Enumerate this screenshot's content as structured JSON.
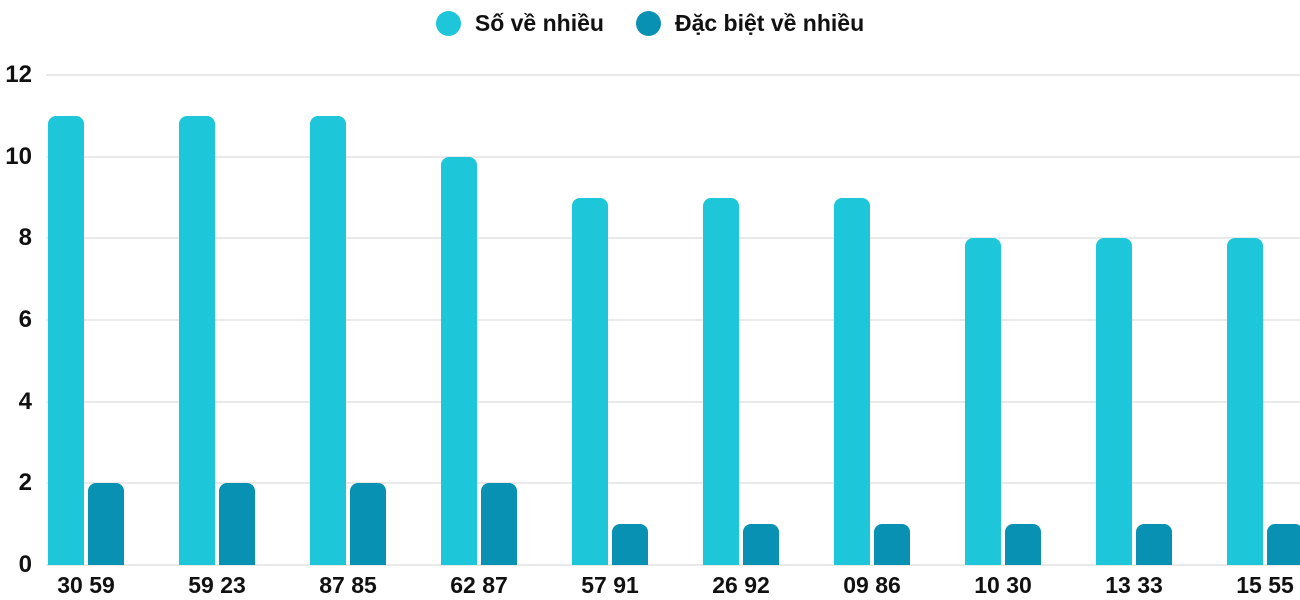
{
  "chart_data": {
    "type": "bar",
    "title": "",
    "categories": [
      "30 59",
      "59 23",
      "87 85",
      "62 87",
      "57 91",
      "26 92",
      "09 86",
      "10 30",
      "13 33",
      "15 55"
    ],
    "series": [
      {
        "name": "Số về nhiều",
        "color": "#1dc6d9",
        "values": [
          11,
          11,
          11,
          10,
          9,
          9,
          9,
          8,
          8,
          8
        ]
      },
      {
        "name": "Đặc biệt về nhiều",
        "color": "#0991b4",
        "values": [
          2,
          2,
          2,
          2,
          1,
          1,
          1,
          1,
          1,
          1
        ]
      }
    ],
    "xlabel": "",
    "ylabel": "",
    "ylim": [
      0,
      12
    ],
    "yticks": [
      0,
      2,
      4,
      6,
      8,
      10,
      12
    ],
    "grid": true,
    "legend_position": "top",
    "colors": {
      "grid_color": "#e9e9e9",
      "text_color": "#111111",
      "background": "#ffffff"
    }
  }
}
